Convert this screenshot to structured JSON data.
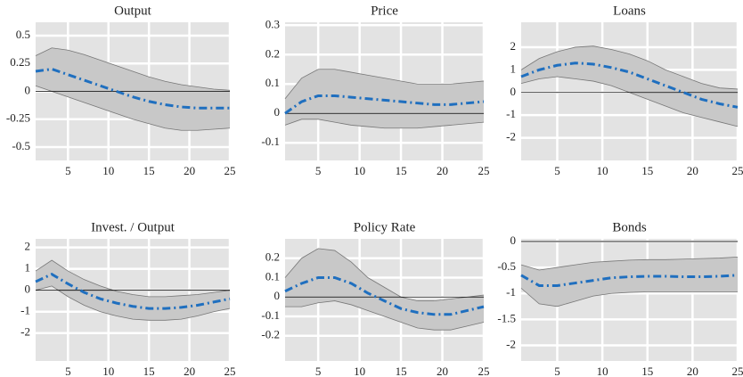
{
  "chart_data": [
    {
      "type": "line",
      "title": "Output",
      "x": [
        1,
        3,
        5,
        7,
        9,
        11,
        13,
        15,
        17,
        19,
        21,
        23,
        25
      ],
      "series": [
        {
          "color": "#1f6fbf",
          "values": [
            0.18,
            0.2,
            0.15,
            0.1,
            0.05,
            0.0,
            -0.05,
            -0.09,
            -0.12,
            -0.14,
            -0.15,
            -0.15,
            -0.15
          ]
        }
      ],
      "upper": [
        0.32,
        0.39,
        0.37,
        0.33,
        0.28,
        0.23,
        0.18,
        0.13,
        0.09,
        0.06,
        0.04,
        0.02,
        0.01
      ],
      "lower": [
        0.05,
        0.0,
        -0.05,
        -0.1,
        -0.15,
        -0.2,
        -0.25,
        -0.29,
        -0.33,
        -0.35,
        -0.35,
        -0.34,
        -0.33
      ],
      "band_color": "#c8c8c8",
      "xlim": [
        1,
        25
      ],
      "xticks": [
        5,
        10,
        15,
        20,
        25
      ],
      "ylim": [
        -0.62,
        0.62
      ],
      "yticks": [
        -0.5,
        -0.25,
        0,
        0.25,
        0.5
      ],
      "grid": true
    },
    {
      "type": "line",
      "title": "Price",
      "x": [
        1,
        3,
        5,
        7,
        9,
        11,
        13,
        15,
        17,
        19,
        21,
        23,
        25
      ],
      "series": [
        {
          "color": "#1f6fbf",
          "values": [
            0.0,
            0.04,
            0.06,
            0.06,
            0.055,
            0.05,
            0.045,
            0.04,
            0.035,
            0.03,
            0.03,
            0.035,
            0.04
          ]
        }
      ],
      "upper": [
        0.05,
        0.12,
        0.15,
        0.15,
        0.14,
        0.13,
        0.12,
        0.11,
        0.1,
        0.1,
        0.1,
        0.105,
        0.11
      ],
      "lower": [
        -0.04,
        -0.02,
        -0.02,
        -0.03,
        -0.04,
        -0.045,
        -0.05,
        -0.05,
        -0.05,
        -0.045,
        -0.04,
        -0.035,
        -0.03
      ],
      "band_color": "#c8c8c8",
      "xlim": [
        1,
        25
      ],
      "xticks": [
        5,
        10,
        15,
        20,
        25
      ],
      "ylim": [
        -0.16,
        0.31
      ],
      "yticks": [
        -0.1,
        0,
        0.1,
        0.2,
        0.3
      ],
      "grid": true
    },
    {
      "type": "line",
      "title": "Loans",
      "x": [
        1,
        3,
        5,
        7,
        9,
        11,
        13,
        15,
        17,
        19,
        21,
        23,
        25
      ],
      "series": [
        {
          "color": "#1f6fbf",
          "values": [
            0.7,
            1.0,
            1.2,
            1.3,
            1.25,
            1.1,
            0.9,
            0.6,
            0.3,
            0.0,
            -0.3,
            -0.5,
            -0.65
          ]
        }
      ],
      "upper": [
        1.0,
        1.5,
        1.8,
        2.0,
        2.05,
        1.9,
        1.7,
        1.4,
        1.0,
        0.7,
        0.4,
        0.2,
        0.15
      ],
      "lower": [
        0.4,
        0.6,
        0.7,
        0.6,
        0.5,
        0.3,
        0.0,
        -0.3,
        -0.6,
        -0.9,
        -1.1,
        -1.3,
        -1.5
      ],
      "band_color": "#c8c8c8",
      "xlim": [
        1,
        25
      ],
      "xticks": [
        5,
        10,
        15,
        20,
        25
      ],
      "ylim": [
        -3,
        3.1
      ],
      "yticks": [
        -2,
        -1,
        0,
        1,
        2
      ],
      "grid": true
    },
    {
      "type": "line",
      "title": "Invest. / Output",
      "x": [
        1,
        3,
        5,
        7,
        9,
        11,
        13,
        15,
        17,
        19,
        21,
        23,
        25
      ],
      "series": [
        {
          "color": "#1f6fbf",
          "values": [
            0.4,
            0.75,
            0.3,
            -0.1,
            -0.4,
            -0.6,
            -0.75,
            -0.85,
            -0.85,
            -0.8,
            -0.7,
            -0.55,
            -0.4
          ]
        }
      ],
      "upper": [
        0.9,
        1.4,
        0.9,
        0.5,
        0.2,
        -0.05,
        -0.2,
        -0.3,
        -0.3,
        -0.25,
        -0.2,
        -0.1,
        0.0
      ],
      "lower": [
        0.0,
        0.2,
        -0.3,
        -0.7,
        -1.0,
        -1.2,
        -1.35,
        -1.4,
        -1.4,
        -1.35,
        -1.2,
        -1.0,
        -0.85
      ],
      "band_color": "#c8c8c8",
      "xlim": [
        1,
        25
      ],
      "xticks": [
        5,
        10,
        15,
        20,
        25
      ],
      "ylim": [
        -3.3,
        2.4
      ],
      "yticks": [
        -2,
        -1,
        0,
        1,
        2
      ],
      "grid": true
    },
    {
      "type": "line",
      "title": "Policy Rate",
      "x": [
        1,
        3,
        5,
        7,
        9,
        11,
        13,
        15,
        17,
        19,
        21,
        23,
        25
      ],
      "series": [
        {
          "color": "#1f6fbf",
          "values": [
            0.03,
            0.07,
            0.1,
            0.1,
            0.07,
            0.02,
            -0.02,
            -0.06,
            -0.08,
            -0.09,
            -0.09,
            -0.07,
            -0.05
          ]
        }
      ],
      "upper": [
        0.1,
        0.2,
        0.25,
        0.24,
        0.18,
        0.1,
        0.05,
        0.0,
        -0.02,
        -0.02,
        -0.01,
        0.0,
        0.01
      ],
      "lower": [
        -0.05,
        -0.05,
        -0.03,
        -0.02,
        -0.04,
        -0.07,
        -0.1,
        -0.13,
        -0.16,
        -0.17,
        -0.17,
        -0.15,
        -0.13
      ],
      "band_color": "#c8c8c8",
      "xlim": [
        1,
        25
      ],
      "xticks": [
        5,
        10,
        15,
        20,
        25
      ],
      "ylim": [
        -0.33,
        0.3
      ],
      "yticks": [
        -0.2,
        -0.1,
        0,
        0.1,
        0.2
      ],
      "grid": true
    },
    {
      "type": "line",
      "title": "Bonds",
      "x": [
        1,
        3,
        5,
        7,
        9,
        11,
        13,
        15,
        17,
        19,
        21,
        23,
        25
      ],
      "series": [
        {
          "color": "#1f6fbf",
          "values": [
            -0.65,
            -0.85,
            -0.85,
            -0.8,
            -0.75,
            -0.7,
            -0.68,
            -0.67,
            -0.67,
            -0.68,
            -0.68,
            -0.67,
            -0.65
          ]
        }
      ],
      "upper": [
        -0.45,
        -0.55,
        -0.5,
        -0.45,
        -0.4,
        -0.38,
        -0.36,
        -0.35,
        -0.35,
        -0.34,
        -0.33,
        -0.32,
        -0.3
      ],
      "lower": [
        -0.9,
        -1.2,
        -1.25,
        -1.15,
        -1.05,
        -1.0,
        -0.98,
        -0.97,
        -0.97,
        -0.97,
        -0.97,
        -0.97,
        -0.97
      ],
      "band_color": "#c8c8c8",
      "xlim": [
        1,
        25
      ],
      "xticks": [
        5,
        10,
        15,
        20,
        25
      ],
      "ylim": [
        -2.3,
        0.05
      ],
      "yticks": [
        -2,
        -1.5,
        -1,
        -0.5,
        0
      ],
      "grid": true
    }
  ]
}
